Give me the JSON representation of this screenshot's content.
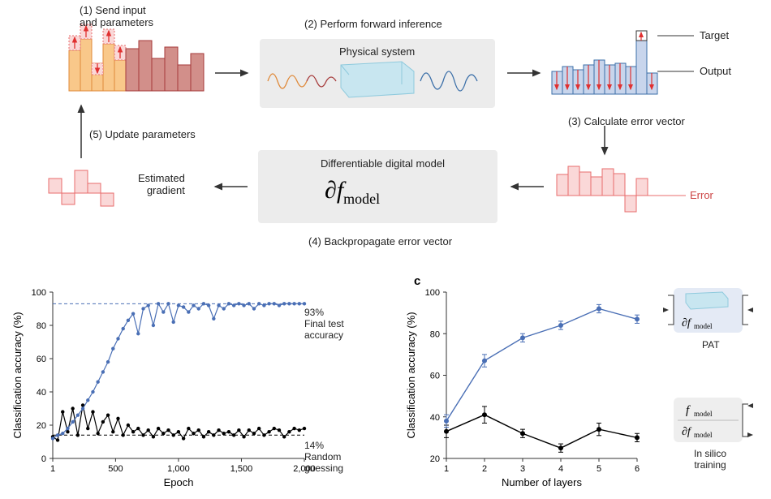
{
  "panelA": {
    "step1": "(1) Send input\nand parameters",
    "step2": "(2) Perform forward inference",
    "step3": "(3) Calculate error vector",
    "step4": "(4) Backpropagate error vector",
    "step5": "(5) Update parameters",
    "phys_label": "Physical system",
    "model_label": "Differentiable digital model",
    "est_grad": "Estimated\ngradient",
    "target_label": "Target",
    "output_label": "Output",
    "error_label": "Error",
    "model_formula": "∂f_model",
    "colors": {
      "orange_fill": "#f9c88a",
      "orange_stroke": "#e08a3a",
      "red_fill": "#f8c9c2",
      "red_stroke": "#a63a3a",
      "blue_fill": "#c8e6f0",
      "blue_stroke": "#3b6fa8",
      "pink_fill": "#fad8d8",
      "pink_stroke": "#e86d6d",
      "box_fill": "#ececec",
      "arrow_red": "#e03030"
    }
  },
  "panelB": {
    "xlabel": "Epoch",
    "ylabel": "Classification accuracy (%)",
    "xlim": [
      1,
      2000
    ],
    "ylim": [
      0,
      100
    ],
    "xticks": [
      1,
      500,
      1000,
      1500,
      2000
    ],
    "yticks": [
      0,
      20,
      40,
      60,
      80,
      100
    ],
    "final_acc_label": "93%\nFinal test\naccuracy",
    "random_label": "14%\nRandom\nguessing",
    "final_acc_value": 93,
    "random_value": 14,
    "blue_series": {
      "color": "#4a6fb5",
      "x": [
        1,
        40,
        80,
        120,
        160,
        200,
        240,
        280,
        320,
        360,
        400,
        440,
        480,
        520,
        560,
        600,
        640,
        680,
        720,
        760,
        800,
        840,
        880,
        920,
        960,
        1000,
        1040,
        1080,
        1120,
        1160,
        1200,
        1240,
        1280,
        1320,
        1360,
        1400,
        1440,
        1480,
        1520,
        1560,
        1600,
        1640,
        1680,
        1720,
        1760,
        1800,
        1840,
        1880,
        1920,
        1960,
        2000
      ],
      "y": [
        12,
        14,
        15,
        18,
        22,
        26,
        30,
        35,
        40,
        46,
        52,
        58,
        66,
        72,
        78,
        83,
        87,
        75,
        90,
        92,
        80,
        93,
        88,
        93,
        82,
        92,
        91,
        88,
        92,
        90,
        93,
        92,
        84,
        92,
        90,
        93,
        92,
        93,
        92,
        93,
        90,
        93,
        92,
        93,
        93,
        92,
        93,
        93,
        93,
        93,
        93
      ]
    },
    "black_series": {
      "color": "#000000",
      "x": [
        1,
        40,
        80,
        120,
        160,
        200,
        240,
        280,
        320,
        360,
        400,
        440,
        480,
        520,
        560,
        600,
        640,
        680,
        720,
        760,
        800,
        840,
        880,
        920,
        960,
        1000,
        1040,
        1080,
        1120,
        1160,
        1200,
        1240,
        1280,
        1320,
        1360,
        1400,
        1440,
        1480,
        1520,
        1560,
        1600,
        1640,
        1680,
        1720,
        1760,
        1800,
        1840,
        1880,
        1920,
        1960,
        2000
      ],
      "y": [
        13,
        11,
        28,
        16,
        30,
        14,
        32,
        18,
        28,
        15,
        22,
        26,
        16,
        24,
        14,
        20,
        16,
        18,
        14,
        17,
        13,
        18,
        15,
        17,
        14,
        16,
        12,
        18,
        15,
        17,
        13,
        16,
        14,
        17,
        15,
        16,
        14,
        17,
        13,
        17,
        15,
        18,
        14,
        16,
        18,
        17,
        13,
        16,
        18,
        17,
        18
      ]
    }
  },
  "panelC": {
    "letter": "c",
    "xlabel": "Number of layers",
    "ylabel": "Classification accuracy (%)",
    "xlim": [
      1,
      6
    ],
    "ylim": [
      20,
      100
    ],
    "xticks": [
      1,
      2,
      3,
      4,
      5,
      6
    ],
    "yticks": [
      20,
      40,
      60,
      80,
      100
    ],
    "blue_series": {
      "color": "#4a6fb5",
      "x": [
        1,
        2,
        3,
        4,
        5,
        6
      ],
      "y": [
        38,
        67,
        78,
        84,
        92,
        87
      ],
      "err": [
        3,
        3,
        2,
        2,
        2,
        2
      ]
    },
    "black_series": {
      "color": "#000000",
      "x": [
        1,
        2,
        3,
        4,
        5,
        6
      ],
      "y": [
        33,
        41,
        32,
        25,
        34,
        30
      ],
      "err": [
        3,
        4,
        2,
        2,
        3,
        2
      ]
    },
    "pat_label": "PAT",
    "insilico_label": "In silico\ntraining",
    "f_model": "f_model",
    "df_model": "∂f_model"
  }
}
